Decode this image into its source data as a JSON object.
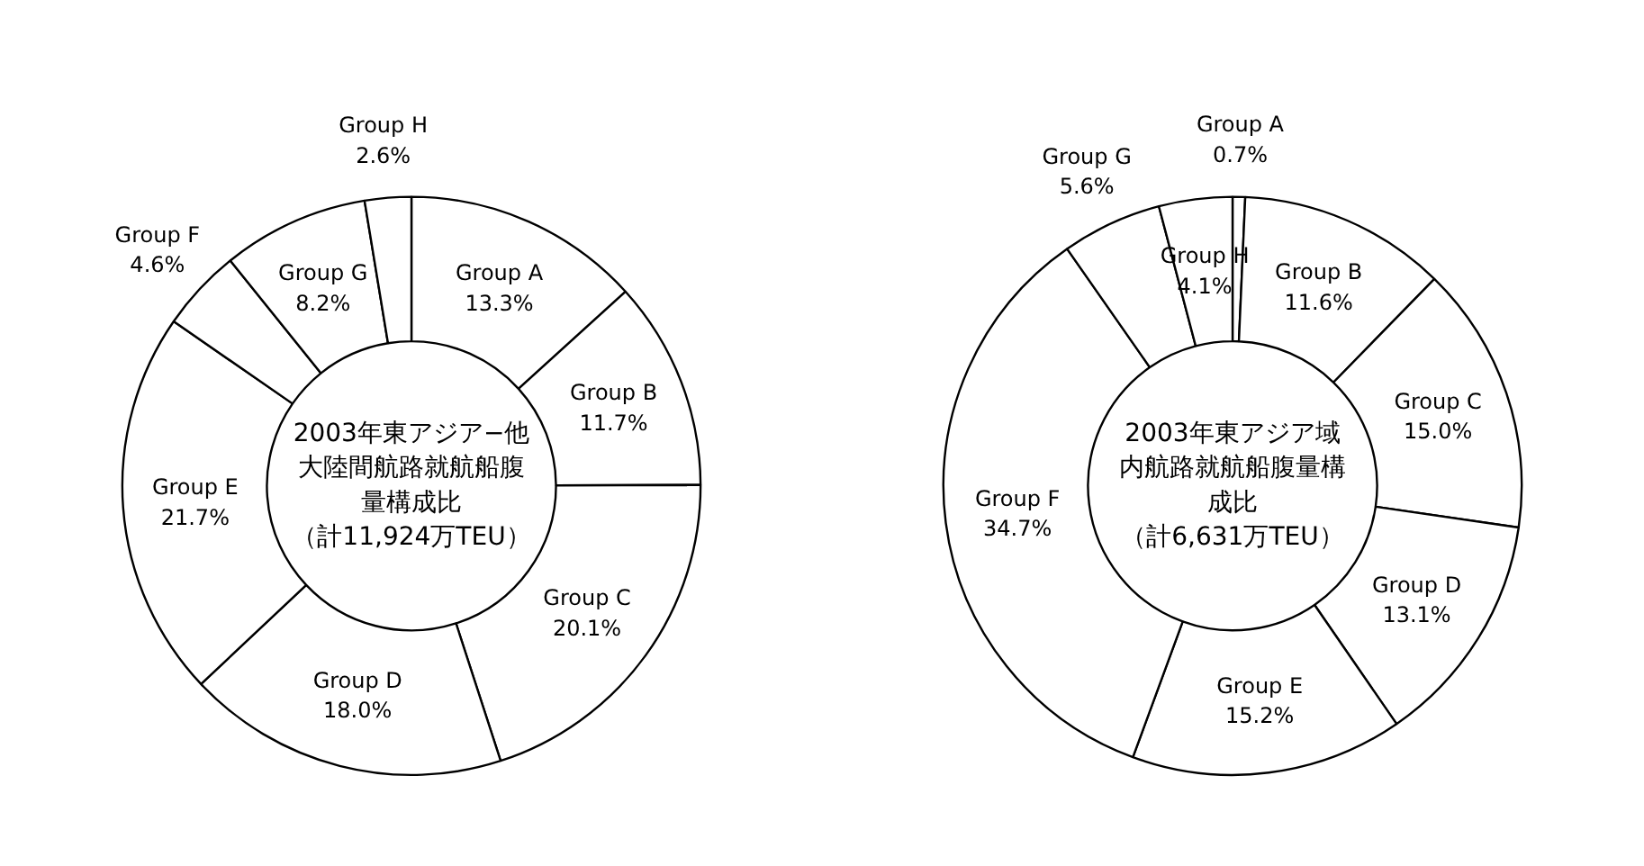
{
  "chart_data": [
    {
      "type": "donut",
      "title": "2003年東アジア−他大陸間航路就航船腹量構成比（計11,924万TEU）",
      "categories": [
        "Group A",
        "Group B",
        "Group C",
        "Group D",
        "Group E",
        "Group F",
        "Group G",
        "Group H"
      ],
      "values": [
        13.3,
        11.7,
        20.1,
        18.0,
        21.7,
        4.6,
        8.2,
        2.6
      ],
      "value_labels": [
        "13.3%",
        "11.7%",
        "20.1%",
        "18.0%",
        "21.7%",
        "4.6%",
        "8.2%",
        "2.6%"
      ],
      "colors": [
        "#ffffff",
        "#ffffff",
        "#ffffff",
        "#ffffff",
        "#ffffff",
        "#ffffff",
        "#ffffff",
        "#ffffff"
      ]
    },
    {
      "type": "donut",
      "title": "2003年東アジア域内航路就航船腹量構成比（計6,631万TEU）",
      "categories": [
        "Group A",
        "Group B",
        "Group C",
        "Group D",
        "Group E",
        "Group F",
        "Group G",
        "Group H"
      ],
      "values": [
        0.7,
        11.6,
        15.0,
        13.1,
        15.2,
        34.7,
        5.6,
        4.1
      ],
      "value_labels": [
        "0.7%",
        "11.6%",
        "15.0%",
        "13.1%",
        "15.2%",
        "34.7%",
        "5.6%",
        "4.1%"
      ],
      "colors": [
        "#ffffff",
        "#ffffff",
        "#ffffff",
        "#ffffff",
        "#ffffff",
        "#ffffff",
        "#ffffff",
        "#ffffff"
      ]
    }
  ]
}
